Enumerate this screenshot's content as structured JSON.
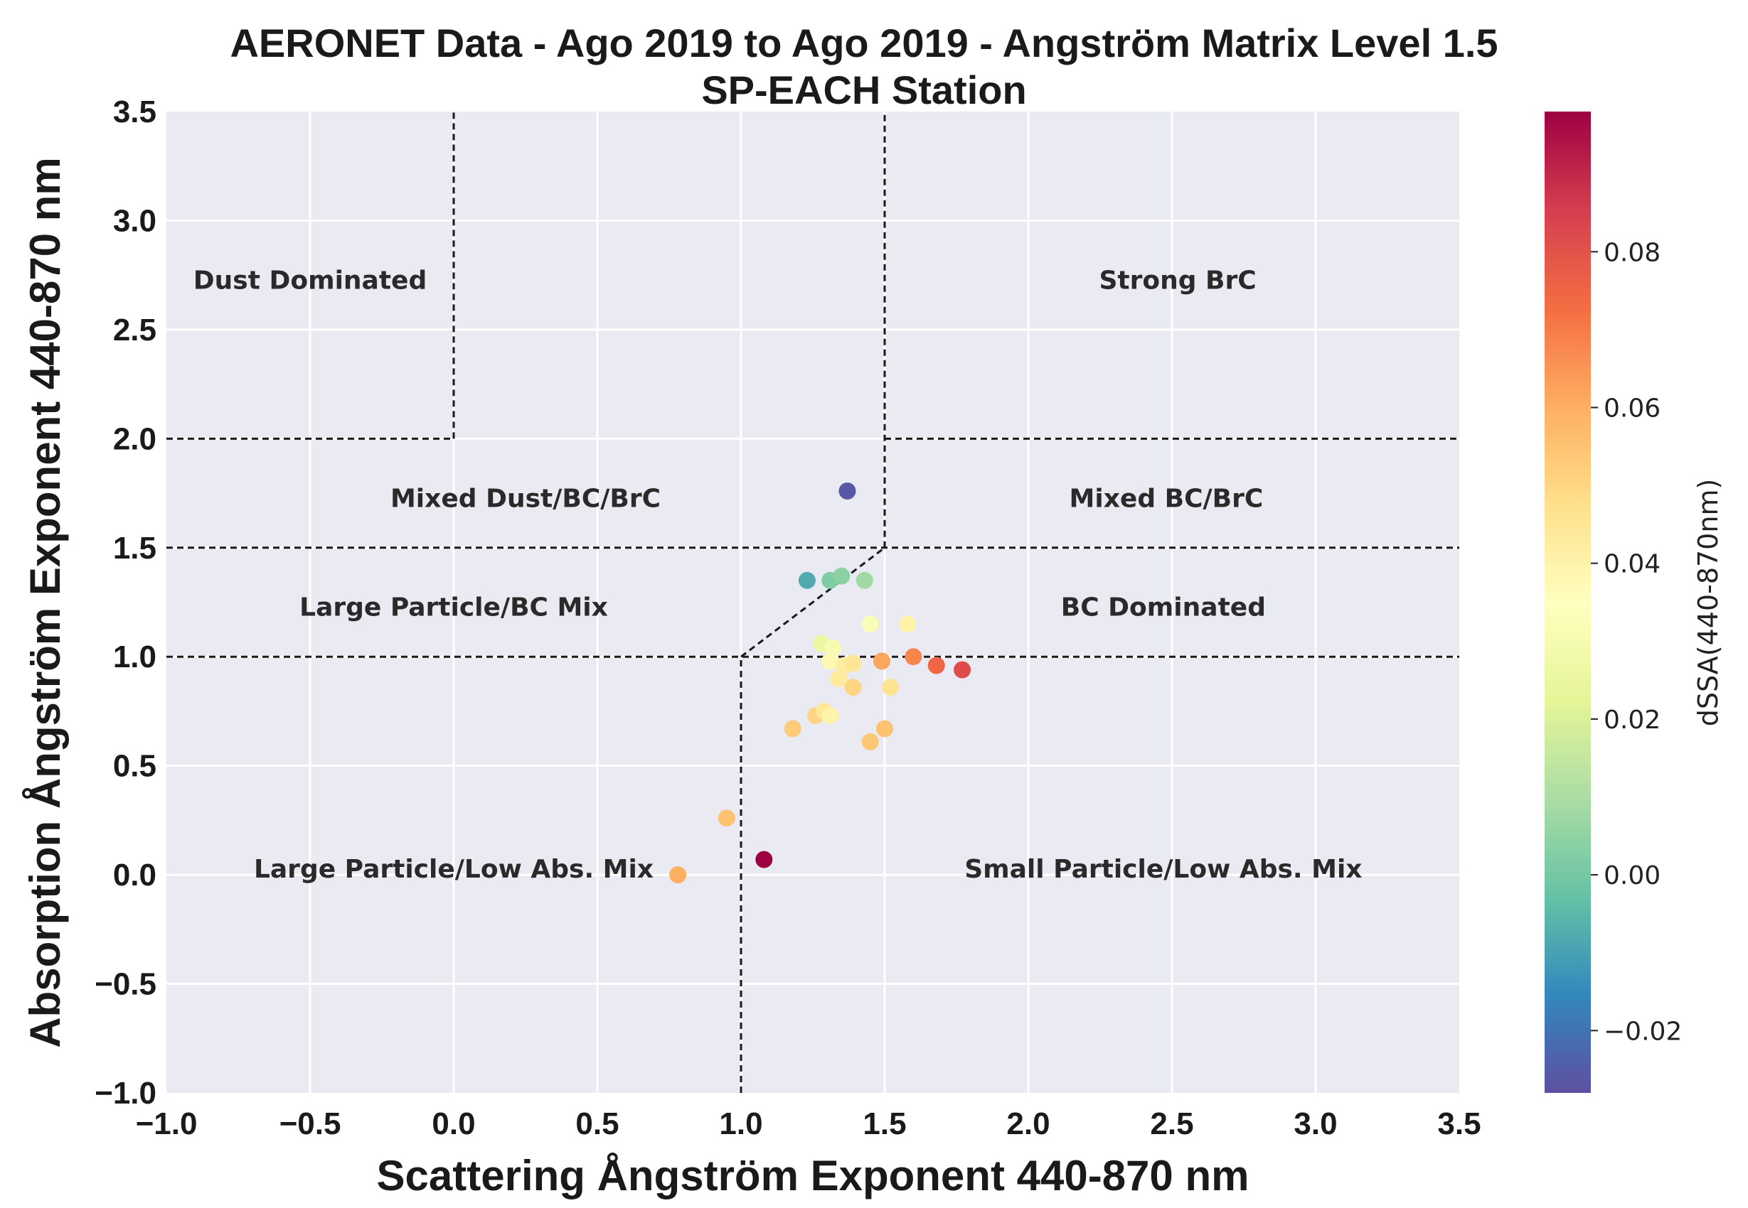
{
  "chart_data": {
    "type": "scatter",
    "title": "AERONET Data - Ago 2019 to Ago 2019 - Angström Matrix Level 1.5",
    "subtitle": "SP-EACH Station",
    "xlabel": "Scattering Ångström Exponent 440-870 nm",
    "ylabel": "Absorption Ångström Exponent 440-870 nm",
    "xlim": [
      -1.0,
      3.5
    ],
    "ylim": [
      -1.0,
      3.5
    ],
    "x_ticks": [
      -1.0,
      -0.5,
      0.0,
      0.5,
      1.0,
      1.5,
      2.0,
      2.5,
      3.0,
      3.5
    ],
    "y_ticks": [
      -1.0,
      -0.5,
      0.0,
      0.5,
      1.0,
      1.5,
      2.0,
      2.5,
      3.0,
      3.5
    ],
    "x_tick_labels": [
      "−1.0",
      "−0.5",
      "0.0",
      "0.5",
      "1.0",
      "1.5",
      "2.0",
      "2.5",
      "3.0",
      "3.5"
    ],
    "y_tick_labels": [
      "−1.0",
      "−0.5",
      "0.0",
      "0.5",
      "1.0",
      "1.5",
      "2.0",
      "2.5",
      "3.0",
      "3.5"
    ],
    "grid": true,
    "colorbar": {
      "label": "dSSA(440-870nm)",
      "range": [
        -0.028,
        0.098
      ],
      "ticks": [
        -0.02,
        0.0,
        0.02,
        0.04,
        0.06,
        0.08
      ],
      "tick_labels": [
        "−0.02",
        "0.00",
        "0.02",
        "0.04",
        "0.06",
        "0.08"
      ],
      "colormap": "Spectral_r"
    },
    "region_boundaries": [
      {
        "x": [
          0.0,
          0.0
        ],
        "y": [
          2.0,
          3.5
        ]
      },
      {
        "x": [
          1.5,
          1.5
        ],
        "y": [
          1.5,
          3.5
        ]
      },
      {
        "x": [
          -1.0,
          0.0
        ],
        "y": [
          2.0,
          2.0
        ]
      },
      {
        "x": [
          1.5,
          3.5
        ],
        "y": [
          2.0,
          2.0
        ]
      },
      {
        "x": [
          -1.0,
          3.5
        ],
        "y": [
          1.5,
          1.5
        ]
      },
      {
        "x": [
          -1.0,
          3.5
        ],
        "y": [
          1.0,
          1.0
        ]
      },
      {
        "x": [
          1.0,
          1.5
        ],
        "y": [
          1.0,
          1.5
        ]
      },
      {
        "x": [
          1.0,
          1.0
        ],
        "y": [
          -1.0,
          1.0
        ]
      }
    ],
    "region_labels": [
      {
        "text": "Dust Dominated",
        "x": -0.5,
        "y": 2.72
      },
      {
        "text": "Strong BrC",
        "x": 2.52,
        "y": 2.72
      },
      {
        "text": "Mixed Dust/BC/BrC",
        "x": 0.25,
        "y": 1.72
      },
      {
        "text": "Mixed BC/BrC",
        "x": 2.48,
        "y": 1.72
      },
      {
        "text": "Large Particle/BC Mix",
        "x": 0.0,
        "y": 1.22
      },
      {
        "text": "BC Dominated",
        "x": 2.47,
        "y": 1.22
      },
      {
        "text": "Large Particle/Low Abs. Mix",
        "x": 0.0,
        "y": 0.02
      },
      {
        "text": "Small Particle/Low Abs. Mix",
        "x": 2.47,
        "y": 0.02
      }
    ],
    "points": [
      {
        "x": 1.37,
        "y": 1.76,
        "c": -0.026
      },
      {
        "x": 1.23,
        "y": 1.35,
        "c": -0.008
      },
      {
        "x": 1.31,
        "y": 1.35,
        "c": 0.002
      },
      {
        "x": 1.35,
        "y": 1.37,
        "c": 0.004
      },
      {
        "x": 1.43,
        "y": 1.35,
        "c": 0.008
      },
      {
        "x": 1.45,
        "y": 1.15,
        "c": 0.032
      },
      {
        "x": 1.58,
        "y": 1.15,
        "c": 0.04
      },
      {
        "x": 1.28,
        "y": 1.06,
        "c": 0.026
      },
      {
        "x": 1.32,
        "y": 1.04,
        "c": 0.03
      },
      {
        "x": 1.31,
        "y": 0.98,
        "c": 0.038
      },
      {
        "x": 1.36,
        "y": 0.96,
        "c": 0.042
      },
      {
        "x": 1.39,
        "y": 0.97,
        "c": 0.045
      },
      {
        "x": 1.34,
        "y": 0.9,
        "c": 0.043
      },
      {
        "x": 1.39,
        "y": 0.86,
        "c": 0.05
      },
      {
        "x": 1.52,
        "y": 0.86,
        "c": 0.046
      },
      {
        "x": 1.49,
        "y": 0.98,
        "c": 0.062
      },
      {
        "x": 1.6,
        "y": 1.0,
        "c": 0.068
      },
      {
        "x": 1.68,
        "y": 0.96,
        "c": 0.075
      },
      {
        "x": 1.77,
        "y": 0.94,
        "c": 0.082
      },
      {
        "x": 1.26,
        "y": 0.73,
        "c": 0.05
      },
      {
        "x": 1.29,
        "y": 0.75,
        "c": 0.044
      },
      {
        "x": 1.31,
        "y": 0.73,
        "c": 0.04
      },
      {
        "x": 1.18,
        "y": 0.67,
        "c": 0.053
      },
      {
        "x": 1.45,
        "y": 0.61,
        "c": 0.054
      },
      {
        "x": 1.5,
        "y": 0.67,
        "c": 0.055
      },
      {
        "x": 0.95,
        "y": 0.26,
        "c": 0.055
      },
      {
        "x": 1.08,
        "y": 0.07,
        "c": 0.098
      },
      {
        "x": 0.78,
        "y": 0.0,
        "c": 0.06
      }
    ]
  }
}
